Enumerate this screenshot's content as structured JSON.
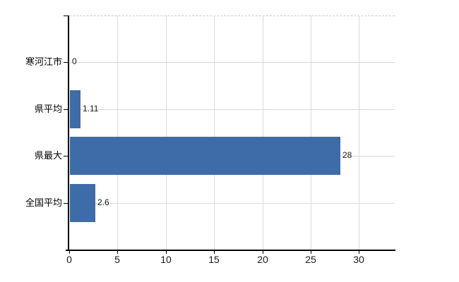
{
  "chart_data": {
    "type": "bar",
    "orientation": "horizontal",
    "title": "",
    "xlabel": "",
    "ylabel": "",
    "categories": [
      "寒河江市",
      "県平均",
      "県最大",
      "全国平均"
    ],
    "values": [
      0,
      1.11,
      28,
      2.6
    ],
    "value_labels": [
      "0",
      "1.11",
      "28",
      "2.6"
    ],
    "xticks": [
      0,
      5,
      10,
      15,
      20,
      25,
      30
    ],
    "xtick_labels": [
      "0",
      "5",
      "10",
      "15",
      "20",
      "25",
      "30"
    ],
    "xlim": [
      0,
      33.7
    ],
    "grid": "both",
    "legend": "none",
    "colors": {
      "bar": "#3d6ca8",
      "grid": "#d9d9d9",
      "frame_dashed": "#c8c8c8",
      "axis": "#000000",
      "text": "#1a1a1a",
      "background": "#ffffff"
    }
  }
}
